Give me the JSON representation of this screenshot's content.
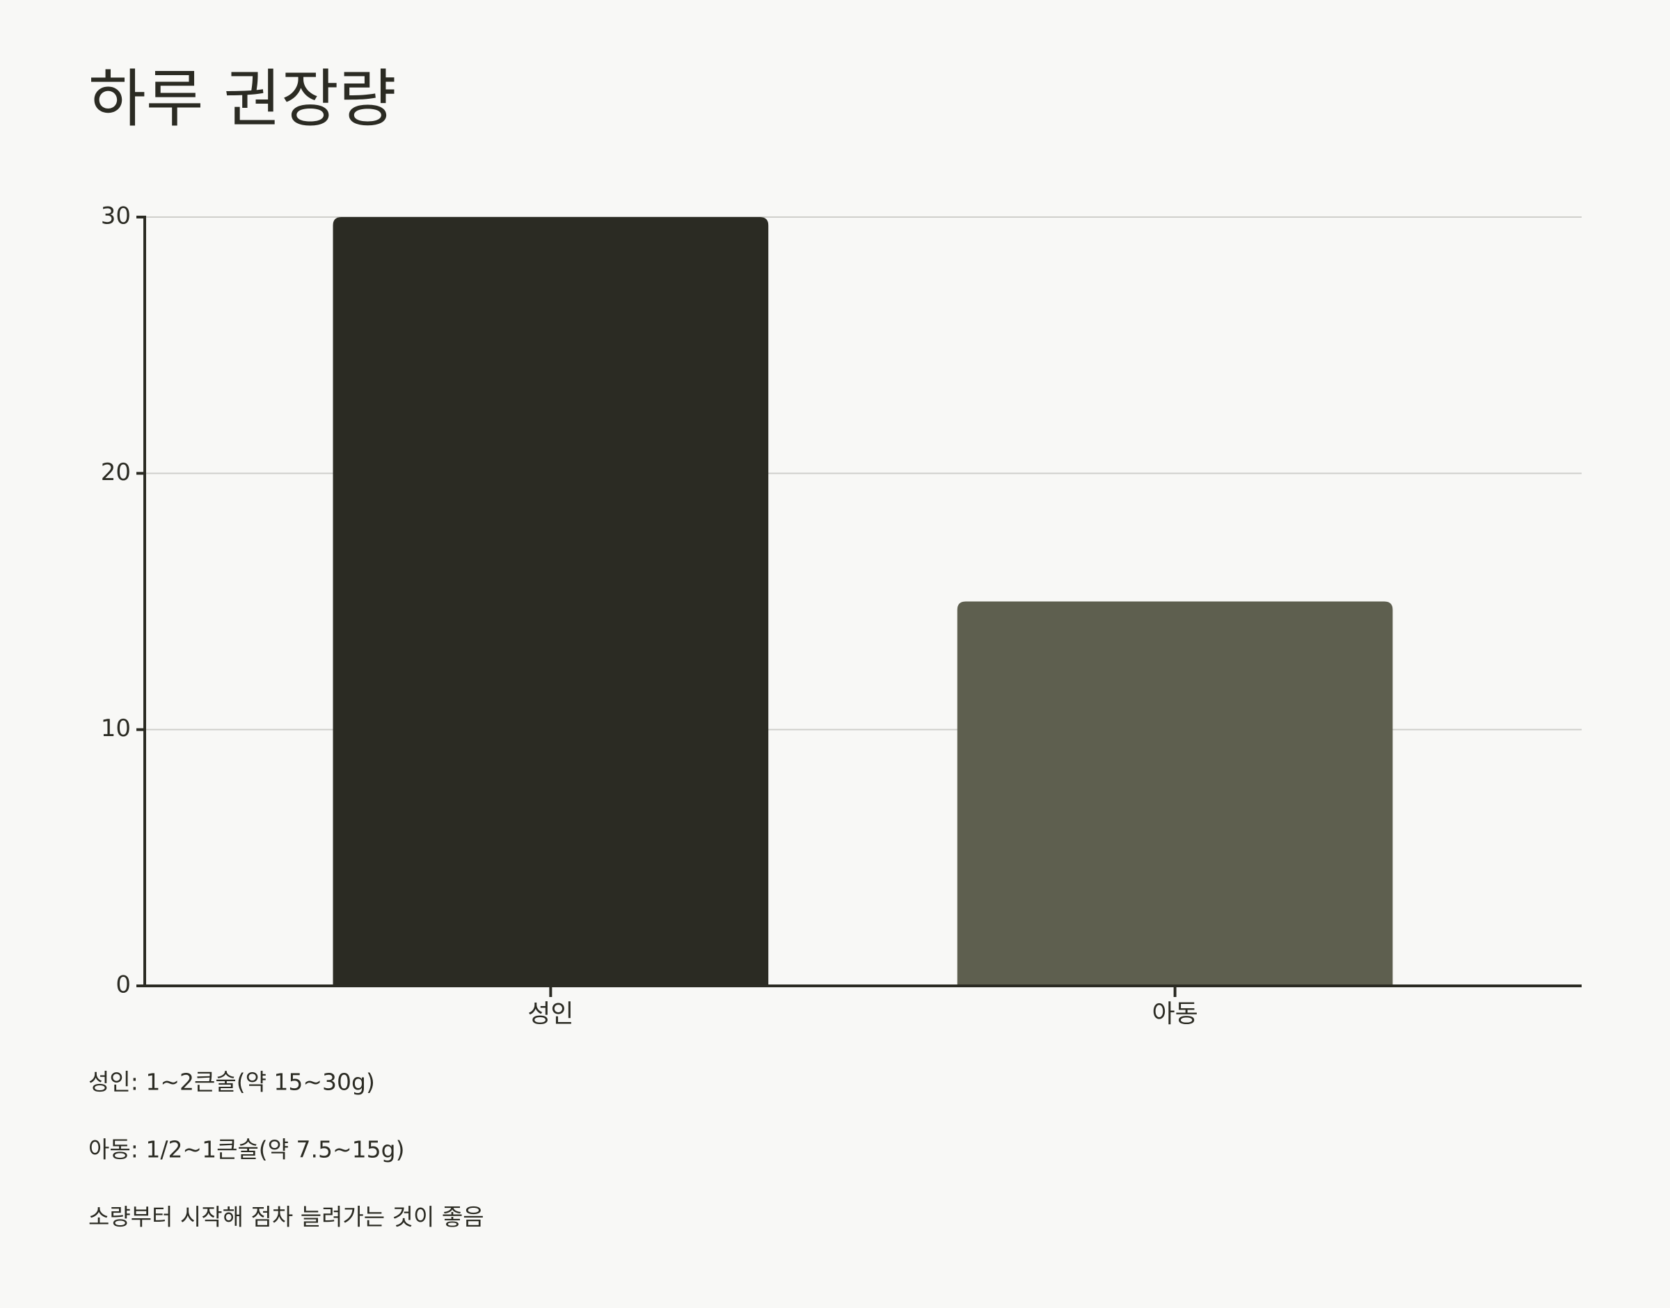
{
  "chart_data": {
    "type": "bar",
    "title": "하루 권장량",
    "categories": [
      "성인",
      "아동"
    ],
    "values": [
      30,
      15
    ],
    "colors": [
      "#2b2b23",
      "#5e5f4f"
    ],
    "ylim": [
      0,
      30
    ],
    "yticks": [
      0,
      10,
      20,
      30
    ],
    "grid": true,
    "annotations": [
      "성인: 1~2큰술(약 15~30g)",
      "아동: 1/2~1큰술(약 7.5~15g)",
      "소량부터 시작해 점차 늘려가는 것이 좋음"
    ]
  }
}
